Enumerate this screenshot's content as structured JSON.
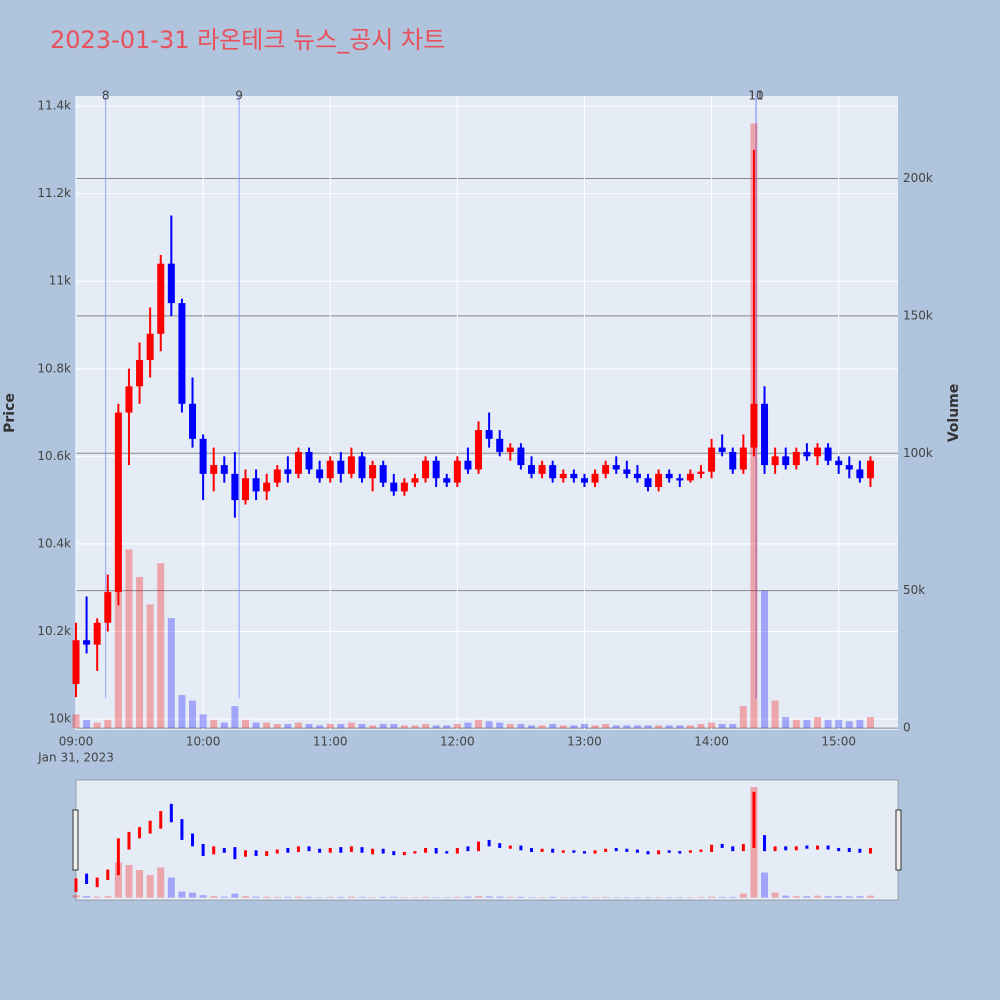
{
  "chart_data": {
    "type": "candlestick",
    "title": "2023-01-31 라온테크 뉴스_공시 차트",
    "y_label": "Price",
    "y2_label": "Volume",
    "increasing_color": "#ff0000",
    "decreasing_color": "#0000ff",
    "x": [
      "2023-01-31 09:00",
      "2023-01-31 09:05",
      "2023-01-31 09:10",
      "2023-01-31 09:15",
      "2023-01-31 09:20",
      "2023-01-31 09:25",
      "2023-01-31 09:30",
      "2023-01-31 09:35",
      "2023-01-31 09:40",
      "2023-01-31 09:45",
      "2023-01-31 09:50",
      "2023-01-31 09:55",
      "2023-01-31 10:00",
      "2023-01-31 10:05",
      "2023-01-31 10:10",
      "2023-01-31 10:15",
      "2023-01-31 10:20",
      "2023-01-31 10:25",
      "2023-01-31 10:30",
      "2023-01-31 10:35",
      "2023-01-31 10:40",
      "2023-01-31 10:45",
      "2023-01-31 10:50",
      "2023-01-31 10:55",
      "2023-01-31 11:00",
      "2023-01-31 11:05",
      "2023-01-31 11:10",
      "2023-01-31 11:15",
      "2023-01-31 11:20",
      "2023-01-31 11:25",
      "2023-01-31 11:30",
      "2023-01-31 11:35",
      "2023-01-31 11:40",
      "2023-01-31 11:45",
      "2023-01-31 11:50",
      "2023-01-31 11:55",
      "2023-01-31 12:00",
      "2023-01-31 12:05",
      "2023-01-31 12:10",
      "2023-01-31 12:15",
      "2023-01-31 12:20",
      "2023-01-31 12:25",
      "2023-01-31 12:30",
      "2023-01-31 12:35",
      "2023-01-31 12:40",
      "2023-01-31 12:45",
      "2023-01-31 12:50",
      "2023-01-31 12:55",
      "2023-01-31 13:00",
      "2023-01-31 13:05",
      "2023-01-31 13:10",
      "2023-01-31 13:15",
      "2023-01-31 13:20",
      "2023-01-31 13:25",
      "2023-01-31 13:30",
      "2023-01-31 13:35",
      "2023-01-31 13:40",
      "2023-01-31 13:45",
      "2023-01-31 13:50",
      "2023-01-31 13:55",
      "2023-01-31 14:00",
      "2023-01-31 14:05",
      "2023-01-31 14:10",
      "2023-01-31 14:15",
      "2023-01-31 14:20",
      "2023-01-31 14:25",
      "2023-01-31 14:30",
      "2023-01-31 14:35",
      "2023-01-31 14:40",
      "2023-01-31 14:45",
      "2023-01-31 14:50",
      "2023-01-31 14:55",
      "2023-01-31 15:00",
      "2023-01-31 15:05",
      "2023-01-31 15:10",
      "2023-01-31 15:15"
    ],
    "open": [
      10080,
      10180,
      10170,
      10220,
      10290,
      10700,
      10760,
      10820,
      10880,
      11040,
      10950,
      10720,
      10640,
      10560,
      10580,
      10560,
      10500,
      10550,
      10520,
      10540,
      10570,
      10560,
      10610,
      10570,
      10550,
      10590,
      10560,
      10600,
      10550,
      10580,
      10540,
      10520,
      10540,
      10550,
      10590,
      10550,
      10540,
      10590,
      10570,
      10660,
      10640,
      10610,
      10620,
      10580,
      10560,
      10580,
      10550,
      10560,
      10550,
      10540,
      10560,
      10580,
      10570,
      10560,
      10550,
      10530,
      10560,
      10550,
      10545,
      10560,
      10565,
      10620,
      10610,
      10570,
      10620,
      10720,
      10580,
      10600,
      10580,
      10610,
      10600,
      10620,
      10590,
      10580,
      10570,
      10550
    ],
    "high": [
      10220,
      10280,
      10230,
      10330,
      10720,
      10800,
      10860,
      10940,
      11060,
      11150,
      10960,
      10780,
      10650,
      10620,
      10600,
      10610,
      10570,
      10570,
      10560,
      10580,
      10600,
      10620,
      10620,
      10590,
      10600,
      10610,
      10620,
      10610,
      10590,
      10590,
      10560,
      10550,
      10560,
      10600,
      10600,
      10560,
      10600,
      10620,
      10680,
      10700,
      10660,
      10630,
      10630,
      10600,
      10590,
      10590,
      10570,
      10570,
      10560,
      10570,
      10590,
      10600,
      10590,
      10580,
      10560,
      10570,
      10570,
      10560,
      10570,
      10580,
      10640,
      10650,
      10620,
      10650,
      11300,
      10760,
      10620,
      10620,
      10620,
      10630,
      10630,
      10630,
      10600,
      10600,
      10590,
      10600
    ],
    "low": [
      10050,
      10150,
      10110,
      10200,
      10260,
      10580,
      10720,
      10780,
      10840,
      10920,
      10700,
      10620,
      10500,
      10520,
      10540,
      10460,
      10490,
      10500,
      10500,
      10530,
      10540,
      10550,
      10560,
      10540,
      10540,
      10540,
      10550,
      10540,
      10520,
      10530,
      10510,
      10510,
      10530,
      10540,
      10530,
      10530,
      10530,
      10560,
      10560,
      10620,
      10600,
      10590,
      10570,
      10550,
      10550,
      10540,
      10540,
      10540,
      10530,
      10530,
      10550,
      10560,
      10550,
      10540,
      10520,
      10520,
      10540,
      10530,
      10540,
      10550,
      10550,
      10600,
      10560,
      10560,
      10600,
      10560,
      10560,
      10570,
      10570,
      10590,
      10580,
      10580,
      10560,
      10550,
      10540,
      10530
    ],
    "close": [
      10180,
      10170,
      10220,
      10290,
      10700,
      10760,
      10820,
      10880,
      11040,
      10950,
      10720,
      10640,
      10560,
      10580,
      10560,
      10500,
      10550,
      10520,
      10540,
      10570,
      10560,
      10610,
      10570,
      10550,
      10590,
      10560,
      10600,
      10550,
      10580,
      10540,
      10520,
      10540,
      10550,
      10590,
      10550,
      10540,
      10590,
      10570,
      10660,
      10640,
      10610,
      10620,
      10580,
      10560,
      10580,
      10550,
      10560,
      10550,
      10540,
      10560,
      10580,
      10570,
      10560,
      10550,
      10530,
      10560,
      10550,
      10545,
      10560,
      10565,
      10620,
      10610,
      10570,
      10620,
      10720,
      10580,
      10600,
      10580,
      10610,
      10600,
      10620,
      10590,
      10580,
      10570,
      10550,
      10590
    ],
    "volume": [
      5000,
      3000,
      2000,
      3000,
      70000,
      65000,
      55000,
      45000,
      60000,
      40000,
      12000,
      10000,
      5000,
      3000,
      2000,
      8000,
      3000,
      2000,
      2000,
      1500,
      1500,
      2000,
      1500,
      1000,
      1500,
      1500,
      2000,
      1500,
      1000,
      1500,
      1500,
      1000,
      1000,
      1500,
      1000,
      1000,
      1500,
      2000,
      3000,
      2500,
      2000,
      1500,
      1500,
      1000,
      1000,
      1500,
      1000,
      1000,
      1500,
      1000,
      1500,
      1000,
      1000,
      1000,
      1000,
      1000,
      1000,
      1000,
      1000,
      1500,
      2000,
      1500,
      1500,
      8000,
      220000,
      50000,
      10000,
      4000,
      3000,
      3000,
      4000,
      3000,
      3000,
      2500,
      3000,
      4000
    ],
    "xlim": [
      "2023-01-31 09:00",
      "2023-01-31 15:28"
    ],
    "xticks": [
      {
        "value": "2023-01-31 09:00",
        "label": "09:00"
      },
      {
        "value": "2023-01-31 10:00",
        "label": "10:00"
      },
      {
        "value": "2023-01-31 11:00",
        "label": "11:00"
      },
      {
        "value": "2023-01-31 12:00",
        "label": "12:00"
      },
      {
        "value": "2023-01-31 13:00",
        "label": "13:00"
      },
      {
        "value": "2023-01-31 14:00",
        "label": "14:00"
      },
      {
        "value": "2023-01-31 15:00",
        "label": "15:00"
      }
    ],
    "x_date_label": "Jan 31, 2023",
    "ylim": [
      9975,
      11423
    ],
    "yticks": [
      {
        "value": 10000,
        "label": "10k"
      },
      {
        "value": 10200,
        "label": "10.2k"
      },
      {
        "value": 10400,
        "label": "10.4k"
      },
      {
        "value": 10600,
        "label": "10.6k"
      },
      {
        "value": 10800,
        "label": "10.8k"
      },
      {
        "value": 11000,
        "label": "11k"
      },
      {
        "value": 11200,
        "label": "11.2k"
      },
      {
        "value": 11400,
        "label": "11.4k"
      }
    ],
    "y2lim": [
      -700,
      230000
    ],
    "y2ticks": [
      0,
      {
        "value": 50000,
        "label": "50k"
      },
      {
        "value": 100000,
        "label": "100k"
      },
      {
        "value": 150000,
        "label": "150k"
      },
      {
        "value": 200000,
        "label": "200k"
      }
    ],
    "events": [
      {
        "x": "2023-01-31 09:14",
        "label": "8"
      },
      {
        "x": "2023-01-31 10:17",
        "label": "9"
      },
      {
        "x": "2023-01-31 14:21",
        "label": "10"
      },
      {
        "x": "2023-01-31 14:21",
        "label": "11"
      }
    ],
    "grid": true,
    "rangeslider": true
  }
}
